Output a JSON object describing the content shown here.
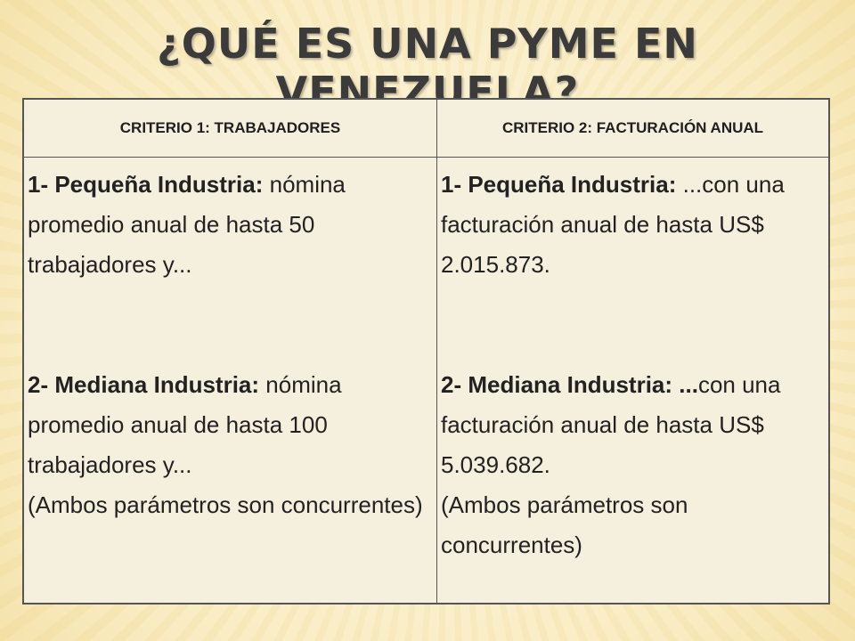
{
  "slide": {
    "title": "¿QUÉ ES UNA PYME EN VENEZUELA?"
  },
  "table": {
    "headers": [
      "CRITERIO 1: TRABAJADORES",
      "CRITERIO 2: FACTURACIÓN ANUAL"
    ],
    "col1": {
      "item1_label": "1- Pequeña Industria:",
      "item1_text": " nómina promedio anual de hasta 50 trabajadores y...",
      "item2_label": "2- Mediana Industria:",
      "item2_text": " nómina promedio anual de hasta 100 trabajadores y...",
      "note": "(Ambos parámetros son concurrentes)"
    },
    "col2": {
      "item1_label": "1- Pequeña Industria:",
      "item1_text": " ...con una facturación anual de hasta US$ 2.015.873.",
      "item2_label": "2- Mediana Industria: ...",
      "item2_text": "con una facturación anual de hasta US$ 5.039.682.",
      "note": "(Ambos parámetros son concurrentes)"
    }
  }
}
